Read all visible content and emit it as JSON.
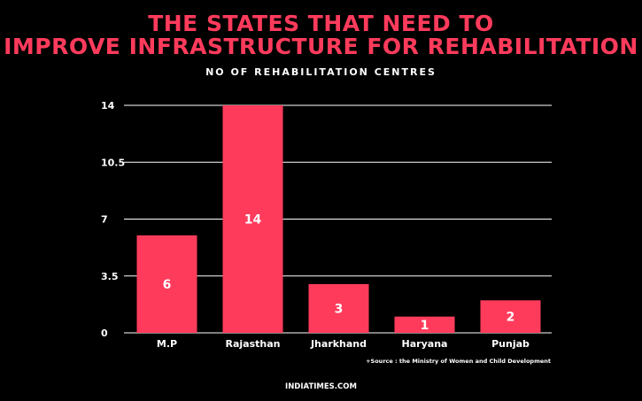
{
  "title_line1": "THE STATES THAT NEED TO",
  "title_line2": "IMPROVE INFRASTRUCTURE FOR REHABILITATION",
  "source": "+Source : the Ministry of Women and Child Development",
  "footer": "INDIATIMES.COM",
  "colors": {
    "background": "#000000",
    "accent": "#ff3b5c",
    "text": "#ffffff",
    "grid": "#ffffff"
  },
  "chart_data": {
    "type": "bar",
    "title": "NO OF REHABILITATION CENTRES",
    "xlabel": "",
    "ylabel": "",
    "categories": [
      "M.P",
      "Rajasthan",
      "Jharkhand",
      "Haryana",
      "Punjab"
    ],
    "values": [
      6,
      14,
      3,
      1,
      2
    ],
    "data_labels": [
      "6",
      "14",
      "3",
      "1",
      "2"
    ],
    "yticks": [
      0,
      3.5,
      7,
      10.5,
      14
    ],
    "ytick_labels": [
      "0",
      "3.5",
      "7",
      "10.5",
      "14"
    ],
    "ylim": [
      0,
      14
    ],
    "grid": true,
    "legend": "none"
  }
}
